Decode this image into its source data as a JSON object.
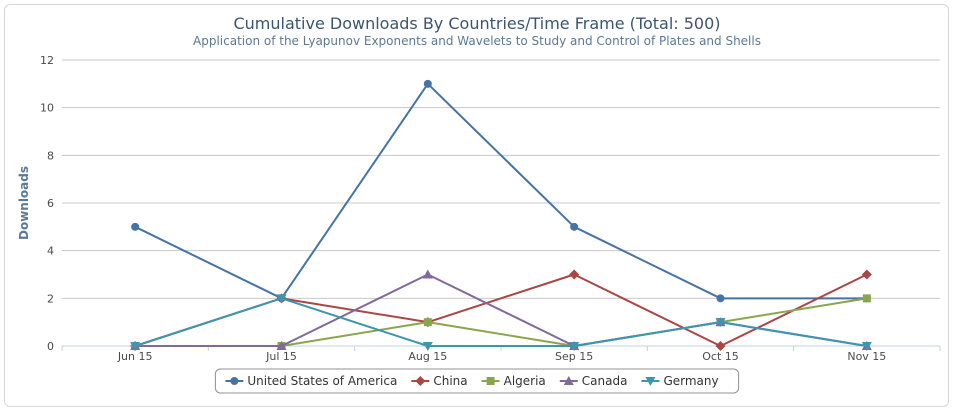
{
  "chart_data": {
    "type": "line",
    "title": "Cumulative Downloads By Countries/Time Frame (Total: 500)",
    "subtitle": "Application of the Lyapunov Exponents and Wavelets to Study and Control of Plates and Shells",
    "xlabel": "",
    "ylabel": "Downloads",
    "categories": [
      "Jun 15",
      "Jul 15",
      "Aug 15",
      "Sep 15",
      "Oct 15",
      "Nov 15"
    ],
    "ylim": [
      0,
      12
    ],
    "yticks": [
      0,
      2,
      4,
      6,
      8,
      10,
      12
    ],
    "grid": true,
    "legend_position": "bottom-center",
    "series": [
      {
        "name": "United States of America",
        "color": "#4572a7",
        "marker": "circle",
        "values": [
          5,
          2,
          11,
          5,
          2,
          2
        ]
      },
      {
        "name": "China",
        "color": "#aa4643",
        "marker": "diamond",
        "values": [
          0,
          2,
          1,
          3,
          0,
          3
        ]
      },
      {
        "name": "Algeria",
        "color": "#89a54e",
        "marker": "square",
        "values": [
          0,
          0,
          1,
          0,
          1,
          2
        ]
      },
      {
        "name": "Canada",
        "color": "#80699b",
        "marker": "triangle",
        "values": [
          0,
          0,
          3,
          0,
          1,
          0
        ]
      },
      {
        "name": "Germany",
        "color": "#3d96ae",
        "marker": "triangle-down",
        "values": [
          0,
          2,
          0,
          0,
          1,
          0
        ]
      }
    ]
  }
}
